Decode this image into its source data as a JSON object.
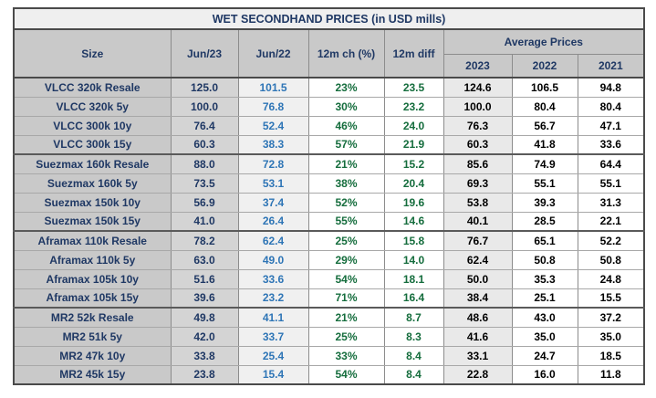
{
  "title": "WET SECONDHAND PRICES (in USD mills)",
  "columns": {
    "size": "Size",
    "jun23": "Jun/23",
    "jun22": "Jun/22",
    "change": "12m ch (%)",
    "diff": "12m diff",
    "avg_group": "Average Prices",
    "avg_years": [
      "2023",
      "2022",
      "2021"
    ]
  },
  "colors": {
    "title_bg": "#efefef",
    "header_bg": "#c9c9c9",
    "navy_text": "#1f3864",
    "jun22_blue_text": "#2e75b6",
    "green_text": "#156d3d",
    "black_text": "#000000",
    "jun23_bg": "#d4d4d4",
    "jun22_bg": "#f0f0f0",
    "avg2023_bg": "#e9e9e9",
    "outer_border": "#4a4a4a",
    "grid_border": "#8c8c8c"
  },
  "chart_data": {
    "type": "table",
    "title": "WET SECONDHAND PRICES (in USD mills)",
    "columns": [
      "Size",
      "Jun/23",
      "Jun/22",
      "12m ch (%)",
      "12m diff",
      "Avg 2023",
      "Avg 2022",
      "Avg 2021"
    ]
  },
  "rows": [
    {
      "size": "VLCC 320k Resale",
      "jun23": "125.0",
      "jun22": "101.5",
      "change": "23%",
      "diff": "23.5",
      "avg2023": "124.6",
      "avg2022": "106.5",
      "avg2021": "94.8",
      "group_start": false
    },
    {
      "size": "VLCC 320k 5y",
      "jun23": "100.0",
      "jun22": "76.8",
      "change": "30%",
      "diff": "23.2",
      "avg2023": "100.0",
      "avg2022": "80.4",
      "avg2021": "80.4",
      "group_start": false
    },
    {
      "size": "VLCC 300k 10y",
      "jun23": "76.4",
      "jun22": "52.4",
      "change": "46%",
      "diff": "24.0",
      "avg2023": "76.3",
      "avg2022": "56.7",
      "avg2021": "47.1",
      "group_start": false
    },
    {
      "size": "VLCC 300k 15y",
      "jun23": "60.3",
      "jun22": "38.3",
      "change": "57%",
      "diff": "21.9",
      "avg2023": "60.3",
      "avg2022": "41.8",
      "avg2021": "33.6",
      "group_start": false
    },
    {
      "size": "Suezmax 160k Resale",
      "jun23": "88.0",
      "jun22": "72.8",
      "change": "21%",
      "diff": "15.2",
      "avg2023": "85.6",
      "avg2022": "74.9",
      "avg2021": "64.4",
      "group_start": true
    },
    {
      "size": "Suezmax 160k 5y",
      "jun23": "73.5",
      "jun22": "53.1",
      "change": "38%",
      "diff": "20.4",
      "avg2023": "69.3",
      "avg2022": "55.1",
      "avg2021": "55.1",
      "group_start": false
    },
    {
      "size": "Suezmax 150k 10y",
      "jun23": "56.9",
      "jun22": "37.4",
      "change": "52%",
      "diff": "19.6",
      "avg2023": "53.8",
      "avg2022": "39.3",
      "avg2021": "31.3",
      "group_start": false
    },
    {
      "size": "Suezmax 150k 15y",
      "jun23": "41.0",
      "jun22": "26.4",
      "change": "55%",
      "diff": "14.6",
      "avg2023": "40.1",
      "avg2022": "28.5",
      "avg2021": "22.1",
      "group_start": false
    },
    {
      "size": "Aframax 110k Resale",
      "jun23": "78.2",
      "jun22": "62.4",
      "change": "25%",
      "diff": "15.8",
      "avg2023": "76.7",
      "avg2022": "65.1",
      "avg2021": "52.2",
      "group_start": true
    },
    {
      "size": "Aframax 110k 5y",
      "jun23": "63.0",
      "jun22": "49.0",
      "change": "29%",
      "diff": "14.0",
      "avg2023": "62.4",
      "avg2022": "50.8",
      "avg2021": "50.8",
      "group_start": false
    },
    {
      "size": "Aframax 105k 10y",
      "jun23": "51.6",
      "jun22": "33.6",
      "change": "54%",
      "diff": "18.1",
      "avg2023": "50.0",
      "avg2022": "35.3",
      "avg2021": "24.8",
      "group_start": false
    },
    {
      "size": "Aframax 105k 15y",
      "jun23": "39.6",
      "jun22": "23.2",
      "change": "71%",
      "diff": "16.4",
      "avg2023": "38.4",
      "avg2022": "25.1",
      "avg2021": "15.5",
      "group_start": false
    },
    {
      "size": "MR2 52k Resale",
      "jun23": "49.8",
      "jun22": "41.1",
      "change": "21%",
      "diff": "8.7",
      "avg2023": "48.6",
      "avg2022": "43.0",
      "avg2021": "37.2",
      "group_start": true
    },
    {
      "size": "MR2 51k 5y",
      "jun23": "42.0",
      "jun22": "33.7",
      "change": "25%",
      "diff": "8.3",
      "avg2023": "41.6",
      "avg2022": "35.0",
      "avg2021": "35.0",
      "group_start": false
    },
    {
      "size": "MR2 47k 10y",
      "jun23": "33.8",
      "jun22": "25.4",
      "change": "33%",
      "diff": "8.4",
      "avg2023": "33.1",
      "avg2022": "24.7",
      "avg2021": "18.5",
      "group_start": false
    },
    {
      "size": "MR2 45k 15y",
      "jun23": "23.8",
      "jun22": "15.4",
      "change": "54%",
      "diff": "8.4",
      "avg2023": "22.8",
      "avg2022": "16.0",
      "avg2021": "11.8",
      "group_start": false
    }
  ]
}
